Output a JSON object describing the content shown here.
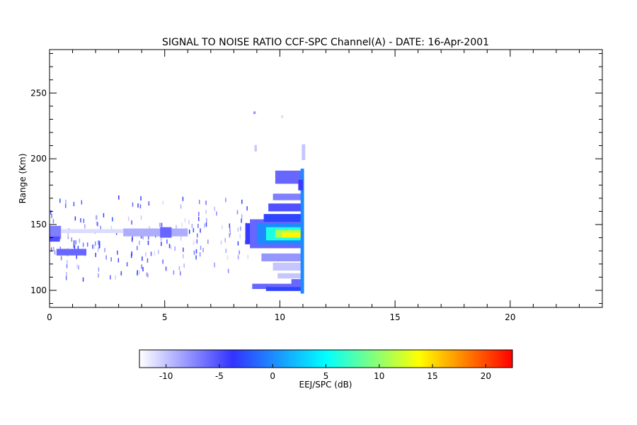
{
  "chart_data": {
    "type": "heatmap",
    "title": "SIGNAL TO NOISE RATIO CCF-SPC Channel(A) - DATE: 16-Apr-2001",
    "xlabel": "",
    "ylabel": "Range (Km)",
    "xlim": [
      0,
      24
    ],
    "ylim": [
      87,
      283
    ],
    "x_ticks": [
      0,
      5,
      10,
      15,
      20
    ],
    "y_ticks": [
      100,
      150,
      200,
      250
    ],
    "x_minor_step": 1,
    "y_minor_step": 10,
    "colorbar": {
      "label": "EEJ/SPC (dB)",
      "range": [
        -12.5,
        22.5
      ],
      "ticks": [
        -10,
        -5,
        0,
        5,
        10,
        15,
        20
      ],
      "colors": [
        "#ffffff",
        "#3333ff",
        "#00ffff",
        "#ffff00",
        "#ff0000"
      ]
    },
    "features": [
      {
        "kind": "streak",
        "x": 0.0,
        "x2": 0.5,
        "y": 144,
        "h": 10,
        "v": -7
      },
      {
        "kind": "streak",
        "x": 0.0,
        "x2": 0.45,
        "y": 139,
        "h": 4,
        "v": -5
      },
      {
        "kind": "streak",
        "x": 0.3,
        "x2": 1.6,
        "y": 129,
        "h": 5,
        "v": -6
      },
      {
        "kind": "streak",
        "x": 0.5,
        "x2": 3.2,
        "y": 145,
        "h": 3,
        "v": -11
      },
      {
        "kind": "streak",
        "x": 3.2,
        "x2": 6.0,
        "y": 144,
        "h": 6,
        "v": -9
      },
      {
        "kind": "streak",
        "x": 4.8,
        "x2": 5.3,
        "y": 144,
        "h": 8,
        "v": -6
      },
      {
        "kind": "streak",
        "x": 8.5,
        "x2": 8.9,
        "y": 143,
        "h": 16,
        "v": -4
      },
      {
        "kind": "streak",
        "x": 8.7,
        "x2": 11.0,
        "y": 143,
        "h": 22,
        "v": -6
      },
      {
        "kind": "streak",
        "x": 9.0,
        "x2": 11.0,
        "y": 143,
        "h": 16,
        "v": 0
      },
      {
        "kind": "streak",
        "x": 9.4,
        "x2": 11.0,
        "y": 143,
        "h": 10,
        "v": 6
      },
      {
        "kind": "streak",
        "x": 9.8,
        "x2": 11.0,
        "y": 143,
        "h": 6,
        "v": 11
      },
      {
        "kind": "streak",
        "x": 10.1,
        "x2": 11.0,
        "y": 142,
        "h": 4,
        "v": 14
      },
      {
        "kind": "streak",
        "x": 9.3,
        "x2": 11.0,
        "y": 155,
        "h": 6,
        "v": -3
      },
      {
        "kind": "streak",
        "x": 9.5,
        "x2": 11.0,
        "y": 163,
        "h": 6,
        "v": -5
      },
      {
        "kind": "streak",
        "x": 9.7,
        "x2": 11.0,
        "y": 171,
        "h": 5,
        "v": -7
      },
      {
        "kind": "streak",
        "x": 9.8,
        "x2": 11.0,
        "y": 186,
        "h": 10,
        "v": -6
      },
      {
        "kind": "streak",
        "x": 9.2,
        "x2": 11.0,
        "y": 125,
        "h": 6,
        "v": -8
      },
      {
        "kind": "streak",
        "x": 9.7,
        "x2": 11.0,
        "y": 118,
        "h": 6,
        "v": -10
      },
      {
        "kind": "streak",
        "x": 9.9,
        "x2": 11.0,
        "y": 111,
        "h": 4,
        "v": -10
      },
      {
        "kind": "streak",
        "x": 8.8,
        "x2": 11.0,
        "y": 103,
        "h": 4,
        "v": -6
      },
      {
        "kind": "streak",
        "x": 9.4,
        "x2": 11.0,
        "y": 101,
        "h": 3,
        "v": -3
      },
      {
        "kind": "streak",
        "x": 10.5,
        "x2": 11.0,
        "y": 106,
        "h": 5,
        "v": -6
      },
      {
        "kind": "streak",
        "x": 10.9,
        "x2": 11.05,
        "y": 145,
        "h": 95,
        "v": 0
      },
      {
        "kind": "streak",
        "x": 10.95,
        "x2": 11.1,
        "y": 205,
        "h": 12,
        "v": -10
      },
      {
        "kind": "streak",
        "x": 10.8,
        "x2": 11.0,
        "y": 180,
        "h": 8,
        "v": -4
      },
      {
        "kind": "streak",
        "x": 8.9,
        "x2": 9.0,
        "y": 208,
        "h": 5,
        "v": -10
      },
      {
        "kind": "streak",
        "x": 8.85,
        "x2": 8.95,
        "y": 235,
        "h": 2,
        "v": -8
      },
      {
        "kind": "streak",
        "x": 10.05,
        "x2": 10.15,
        "y": 232,
        "h": 2,
        "v": -11
      }
    ],
    "noise_regions": [
      {
        "x": 0.0,
        "x2": 8.6,
        "y": 108,
        "y2": 172,
        "n": 130
      },
      {
        "x": 0.0,
        "x2": 8.6,
        "y": 125,
        "y2": 160,
        "n": 60
      }
    ]
  }
}
